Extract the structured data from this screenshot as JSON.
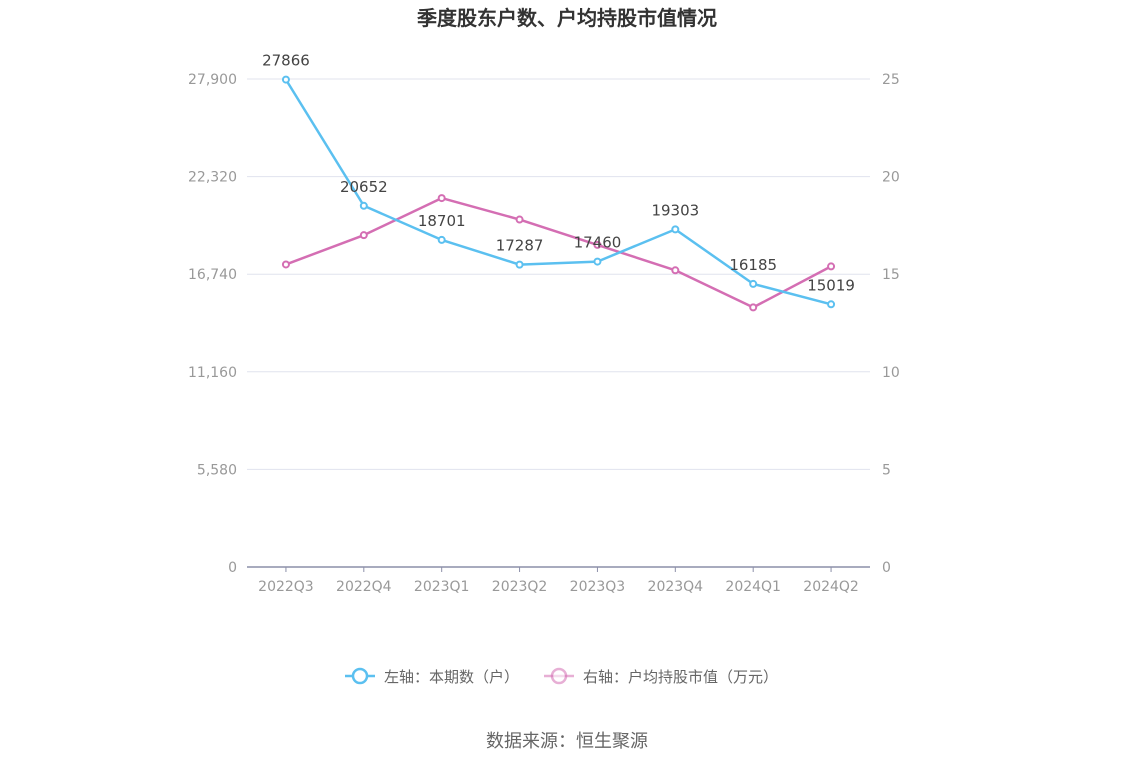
{
  "chart_data": {
    "type": "line",
    "title": "季度股东户数、户均持股市值情况",
    "categories": [
      "2022Q3",
      "2022Q4",
      "2023Q1",
      "2023Q2",
      "2023Q3",
      "2023Q4",
      "2024Q1",
      "2024Q2"
    ],
    "left_axis": {
      "ylim": [
        0,
        27900
      ],
      "ticks": [
        0,
        5580,
        11160,
        16740,
        22320,
        27900
      ],
      "tick_labels": [
        "0",
        "5,580",
        "11,160",
        "16,740",
        "22,320",
        "27,900"
      ]
    },
    "right_axis": {
      "ylim": [
        0,
        25
      ],
      "ticks": [
        0,
        5,
        10,
        15,
        20,
        25
      ],
      "tick_labels": [
        "0",
        "5",
        "10",
        "15",
        "20",
        "25"
      ]
    },
    "series": [
      {
        "name": "左轴：本期数（户）",
        "axis": "left",
        "color": "#5bc0f0",
        "values": [
          27866,
          20652,
          18701,
          17287,
          17460,
          19303,
          16185,
          15019
        ],
        "data_labels": [
          "27866",
          "20652",
          "18701",
          "17287",
          "17460",
          "19303",
          "16185",
          "15019"
        ]
      },
      {
        "name": "右轴：户均持股市值（万元）",
        "axis": "right",
        "color": "#d46eb3",
        "values": [
          15.5,
          17.0,
          18.9,
          17.8,
          16.5,
          15.2,
          13.3,
          15.4
        ]
      }
    ],
    "grid": true,
    "legend_position": "bottom"
  },
  "source": "数据来源：恒生聚源"
}
